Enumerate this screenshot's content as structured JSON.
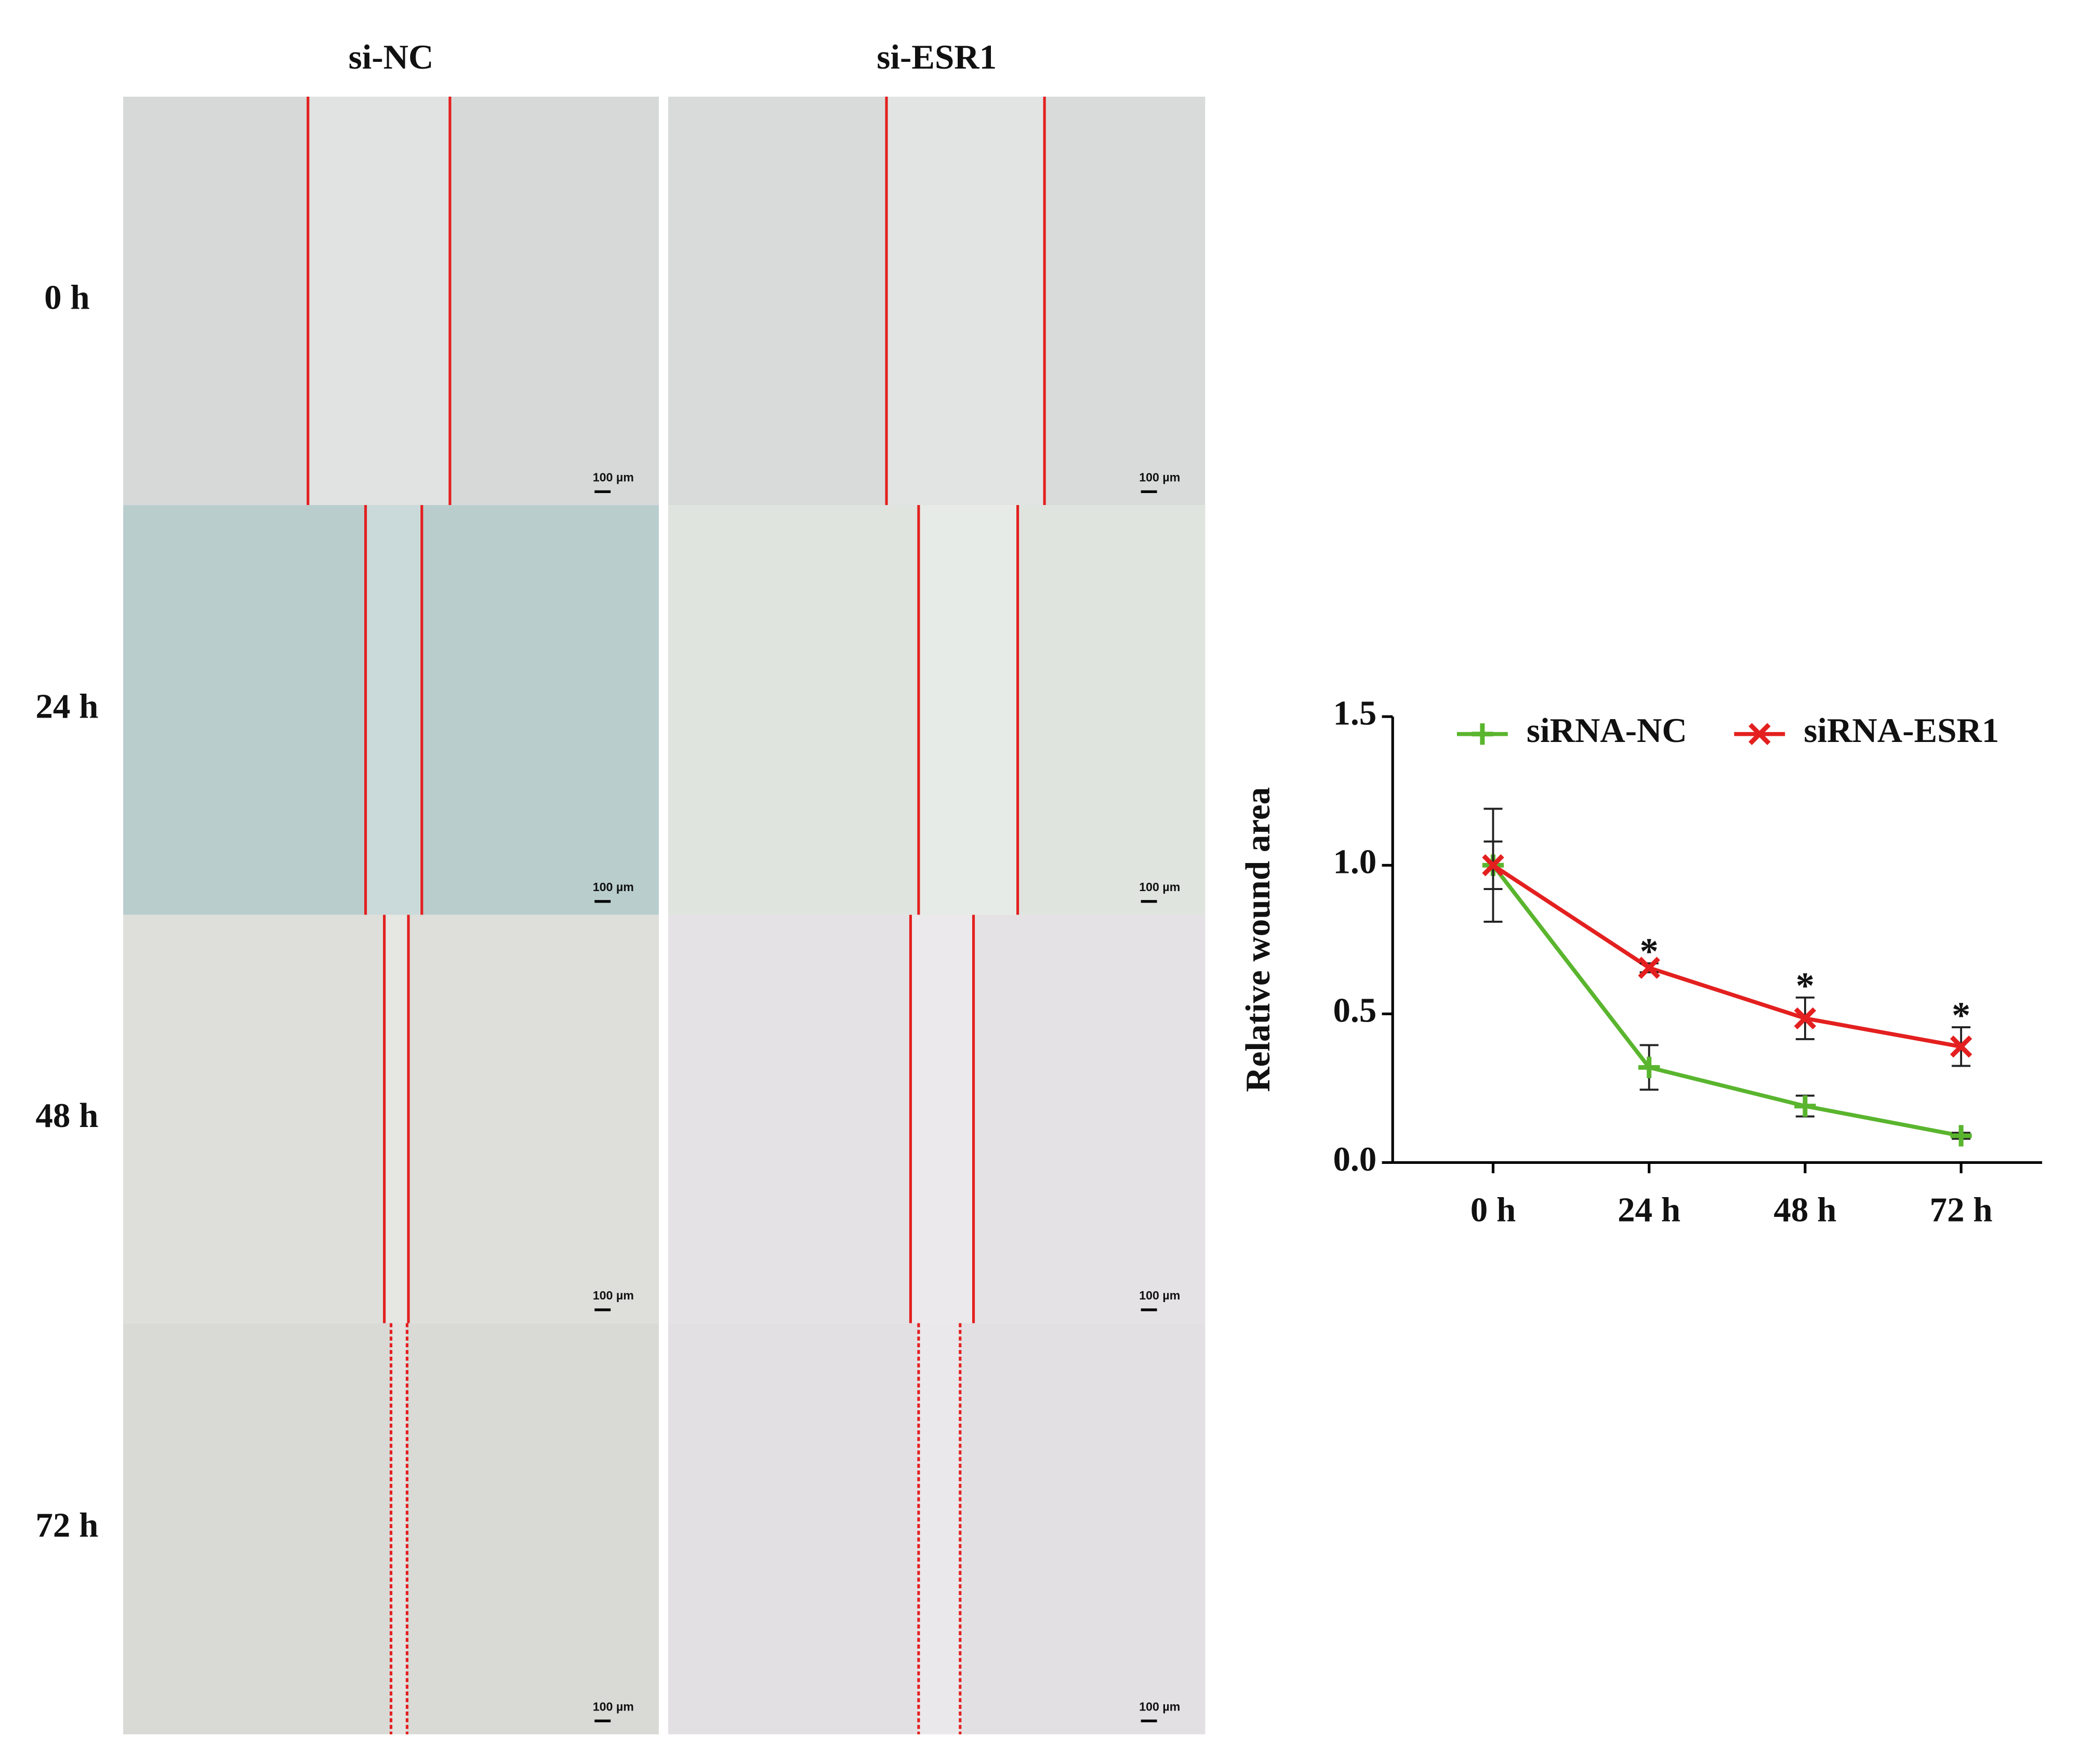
{
  "panels": {
    "columns": [
      "si-NC",
      "si-ESR1"
    ],
    "rows": [
      "0 h",
      "24 h",
      "48 h",
      "72 h"
    ],
    "scale_bar": "100 µm"
  },
  "chart_data": {
    "type": "line",
    "y_label": "Relative wound area",
    "categories": [
      "0 h",
      "24 h",
      "48 h",
      "72 h"
    ],
    "ylim": [
      0,
      1.5
    ],
    "yticks": [
      {
        "value": 0,
        "label": "0.0"
      },
      {
        "value": 0.5,
        "label": "0.5"
      },
      {
        "value": 1,
        "label": "1.0"
      },
      {
        "value": 1.5,
        "label": "1.5"
      }
    ],
    "series": [
      {
        "name": "siRNA-NC",
        "color": "#5ab52e",
        "marker": "plus",
        "values": [
          1.0,
          0.32,
          0.19,
          0.09
        ],
        "errors": [
          0.19,
          0.075,
          0.035,
          0.01
        ]
      },
      {
        "name": "siRNA-ESR1",
        "color": "#e3201f",
        "marker": "cross",
        "values": [
          1.0,
          0.655,
          0.485,
          0.39
        ],
        "errors": [
          0.08,
          0.015,
          0.07,
          0.065
        ],
        "significance": [
          null,
          "*",
          "*",
          "*"
        ]
      }
    ]
  }
}
